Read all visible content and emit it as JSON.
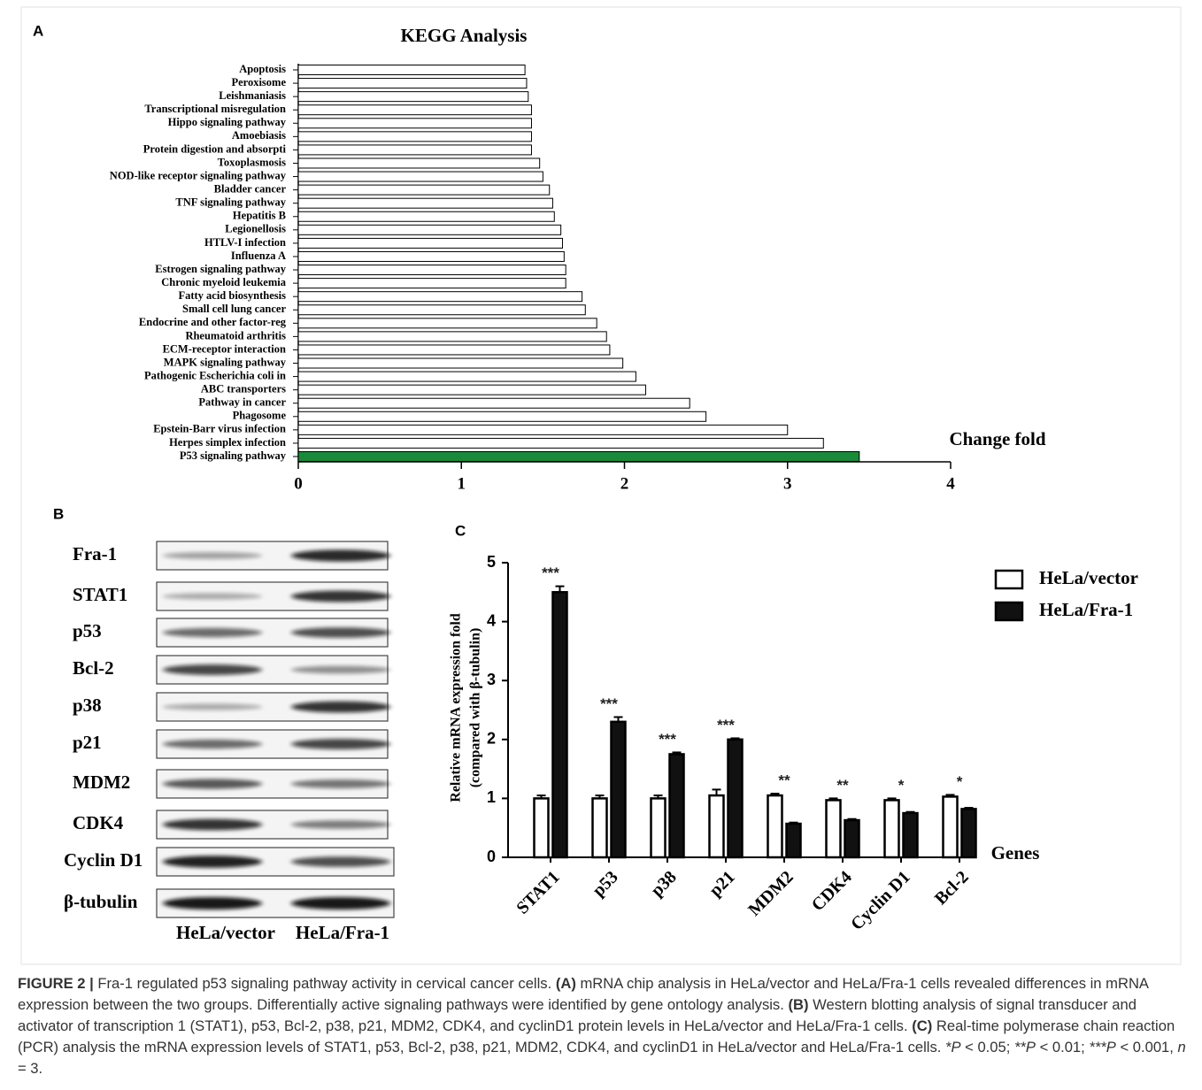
{
  "panel_labels": [
    "A",
    "B",
    "C"
  ],
  "chart_data": [
    {
      "type": "hbar",
      "title": "KEGG Analysis",
      "x_label": "Change fold",
      "categories": [
        "Apoptosis",
        "Peroxisome",
        "Leishmaniasis",
        "Transcriptional misregulation",
        "Hippo signaling pathway",
        "Amoebiasis",
        "Protein digestion and absorpti",
        "Toxoplasmosis",
        "NOD-like receptor signaling pathway",
        "Bladder cancer",
        "TNF signaling pathway",
        "Hepatitis B",
        "Legionellosis",
        "HTLV-I infection",
        "Influenza A",
        "Estrogen signaling pathway",
        "Chronic myeloid leukemia",
        "Fatty acid biosynthesis",
        "Small cell lung cancer",
        "Endocrine and other factor-reg",
        "Rheumatoid arthritis",
        "ECM-receptor interaction",
        "MAPK signaling pathway",
        "Pathogenic Escherichia coli in",
        "ABC transporters",
        "Pathway in cancer",
        "Phagosome",
        "Epstein-Barr virus infection",
        "Herpes simplex infection",
        "P53 signaling pathway"
      ],
      "values": [
        1.39,
        1.4,
        1.41,
        1.43,
        1.43,
        1.43,
        1.43,
        1.48,
        1.5,
        1.54,
        1.56,
        1.57,
        1.61,
        1.62,
        1.63,
        1.64,
        1.64,
        1.74,
        1.76,
        1.83,
        1.89,
        1.91,
        1.99,
        2.07,
        2.13,
        2.4,
        2.5,
        3.0,
        3.22,
        3.44
      ],
      "colors": [
        "#ffffff",
        "#ffffff",
        "#ffffff",
        "#ffffff",
        "#ffffff",
        "#ffffff",
        "#ffffff",
        "#ffffff",
        "#ffffff",
        "#ffffff",
        "#ffffff",
        "#ffffff",
        "#ffffff",
        "#ffffff",
        "#ffffff",
        "#ffffff",
        "#ffffff",
        "#ffffff",
        "#ffffff",
        "#ffffff",
        "#ffffff",
        "#ffffff",
        "#ffffff",
        "#ffffff",
        "#ffffff",
        "#ffffff",
        "#ffffff",
        "#ffffff",
        "#ffffff",
        "#1a8a3a"
      ],
      "xlim": [
        0,
        4
      ],
      "xticks": [
        0,
        1,
        2,
        3,
        4
      ]
    },
    {
      "type": "grouped-bar",
      "y_label": [
        "Relative mRNA expression fold",
        "(compared with β-tubulin)"
      ],
      "x_label": "Genes",
      "categories": [
        "STAT1",
        "p53",
        "p38",
        "p21",
        "MDM2",
        "CDK4",
        "Cyclin D1",
        "Bcl-2"
      ],
      "series": [
        {
          "name": "HeLa/vector",
          "color": "#ffffff",
          "values": [
            1.0,
            1.0,
            1.0,
            1.05,
            1.05,
            0.97,
            0.97,
            1.03
          ],
          "errors": [
            0.05,
            0.05,
            0.05,
            0.1,
            0.03,
            0.03,
            0.03,
            0.03
          ]
        },
        {
          "name": "HeLa/Fra-1",
          "color": "#111111",
          "values": [
            4.5,
            2.3,
            1.75,
            2.0,
            0.57,
            0.63,
            0.75,
            0.82
          ],
          "errors": [
            0.1,
            0.08,
            0.03,
            0.02,
            0.02,
            0.02,
            0.02,
            0.02
          ]
        }
      ],
      "annotations": [
        "***",
        "***",
        "***",
        "***",
        "**",
        "**",
        "*",
        "*"
      ],
      "ylim": [
        0,
        5
      ],
      "yticks": [
        0,
        1,
        2,
        3,
        4,
        5
      ]
    }
  ],
  "blot": {
    "proteins": [
      "Fra-1",
      "STAT1",
      "p53",
      "Bcl-2",
      "p38",
      "p21",
      "MDM2",
      "CDK4",
      "Cyclin D1",
      "β-tubulin"
    ],
    "groups": [
      "HeLa/vector",
      "HeLa/Fra-1"
    ]
  },
  "caption": [
    {
      "text": "FIGURE 2 |",
      "bold": true
    },
    {
      "text": " Fra-1 regulated p53 signaling pathway activity in cervical cancer cells. "
    },
    {
      "text": "(A)",
      "bold": true
    },
    {
      "text": " mRNA chip analysis in HeLa/vector and HeLa/Fra-1 cells revealed differences in mRNA expression between the two groups. Differentially active signaling pathways were identified by gene ontology analysis. "
    },
    {
      "text": "(B)",
      "bold": true
    },
    {
      "text": " Western blotting analysis of signal transducer and activator of transcription 1 (STAT1), p53, Bcl-2, p38, p21, MDM2, CDK4, and cyclinD1 protein levels in HeLa/vector and HeLa/Fra-1 cells. "
    },
    {
      "text": "(C)",
      "bold": true
    },
    {
      "text": " Real-time polymerase chain reaction (PCR) analysis the mRNA expression levels of STAT1, p53, Bcl-2, p38, p21, MDM2, CDK4, and cyclinD1 in HeLa/vector and HeLa/Fra-1 cells. "
    },
    {
      "text": "*P",
      "italic": true
    },
    {
      "text": " < 0.05; "
    },
    {
      "text": "**P",
      "italic": true
    },
    {
      "text": " < 0.01; "
    },
    {
      "text": "***P",
      "italic": true
    },
    {
      "text": " < 0.001, "
    },
    {
      "text": "n",
      "italic": true
    },
    {
      "text": " = 3."
    }
  ]
}
